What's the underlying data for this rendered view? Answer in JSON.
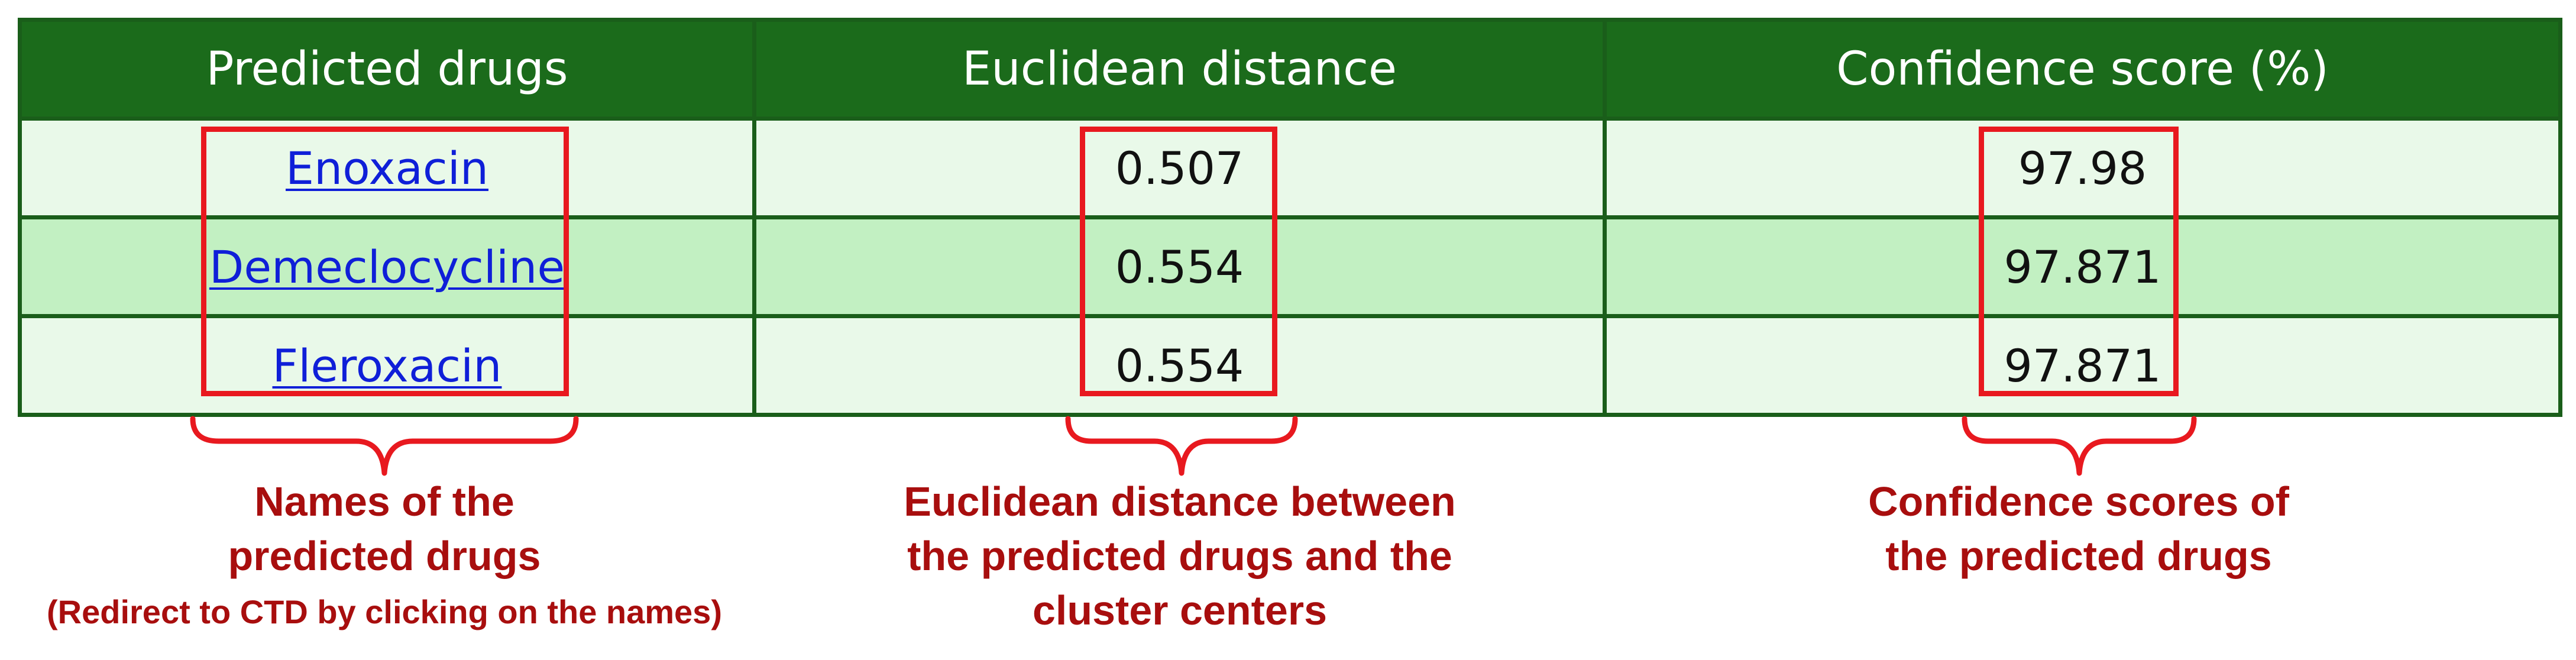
{
  "table": {
    "headers": [
      "Predicted drugs",
      "Euclidean distance",
      "Confidence score (%)"
    ],
    "rows": [
      {
        "drug": "Enoxacin",
        "distance": "0.507",
        "confidence": "97.98"
      },
      {
        "drug": "Demeclocycline",
        "distance": "0.554",
        "confidence": "97.871"
      },
      {
        "drug": "Fleroxacin",
        "distance": "0.554",
        "confidence": "97.871"
      }
    ]
  },
  "annotations": {
    "drugs": {
      "line1": "Names of the",
      "line2": "predicted drugs",
      "note": "(Redirect to CTD by clicking on the names)"
    },
    "distance": {
      "line1": "Euclidean distance between",
      "line2": "the predicted drugs and the",
      "line3": "cluster centers"
    },
    "confidence": {
      "line1": "Confidence scores of",
      "line2": "the predicted drugs"
    }
  },
  "colors": {
    "header_bg": "#1b6b1b",
    "row_light": "#e9f9e9",
    "row_dark": "#c2f0c2",
    "link": "#0f1fd8",
    "highlight_box": "#e8191f",
    "annotation_text": "#a80e0e"
  }
}
